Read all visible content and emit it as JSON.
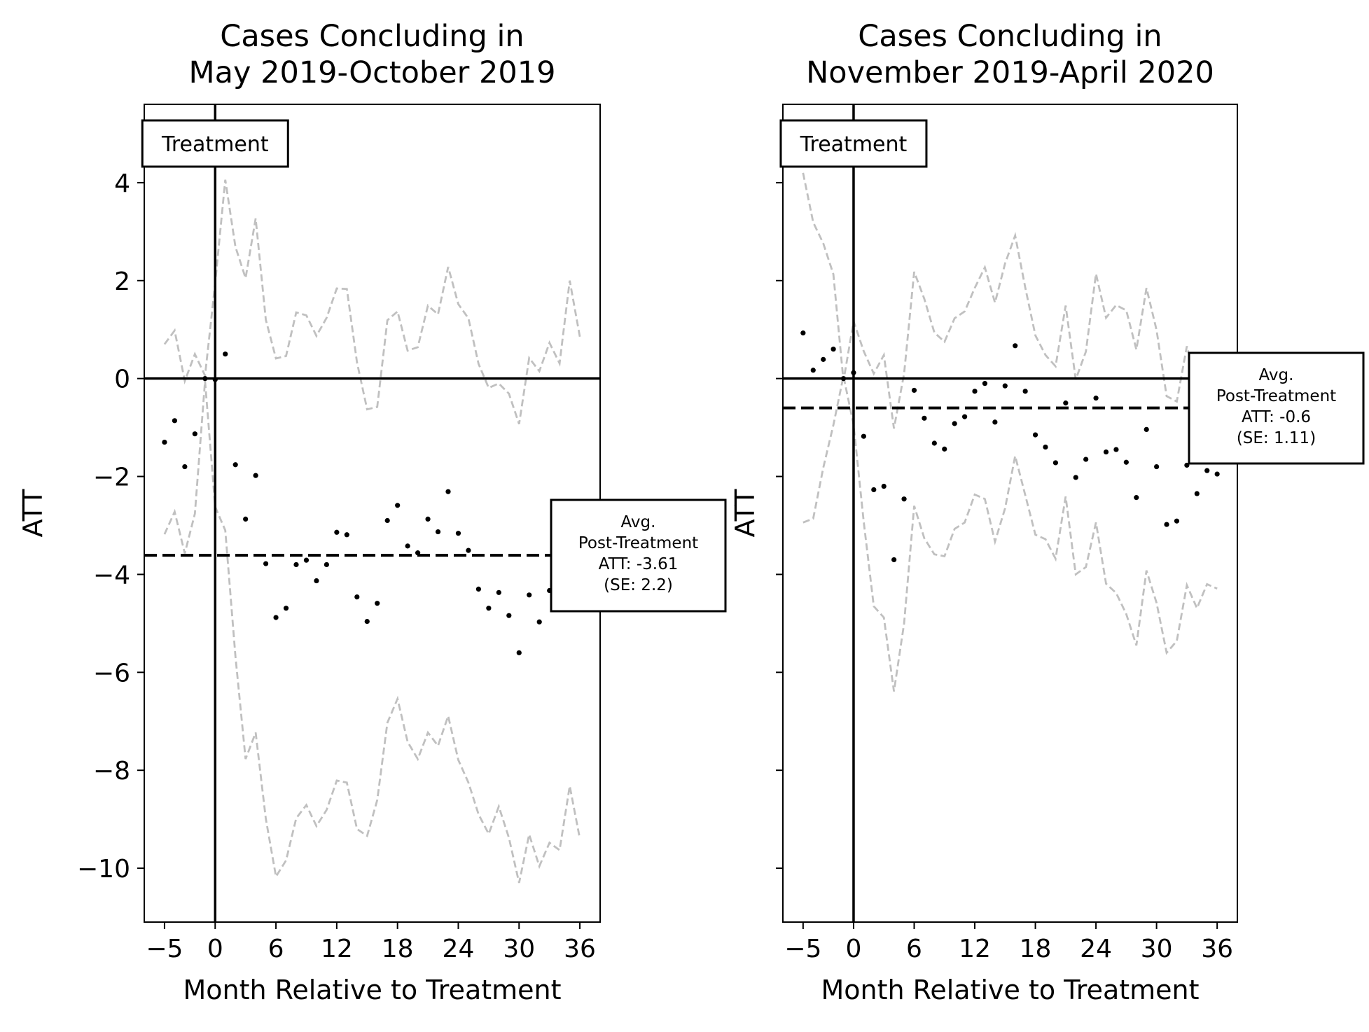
{
  "chart_data": [
    {
      "type": "scatter",
      "title_lines": [
        "Cases Concluding in",
        "May 2019-October 2019"
      ],
      "xlabel": "Month Relative to Treatment",
      "ylabel": "ATT",
      "xlim": [
        -7,
        38
      ],
      "ylim": [
        -11.1,
        5.6
      ],
      "xticks": [
        -5,
        0,
        6,
        12,
        18,
        24,
        30,
        36
      ],
      "xtick_labels": [
        "−5",
        "0",
        "6",
        "12",
        "18",
        "24",
        "30",
        "36"
      ],
      "yticks": [
        4,
        2,
        0,
        -2,
        -4,
        -6,
        -8,
        -10
      ],
      "ytick_labels": [
        "4",
        "2",
        "0",
        "−2",
        "−4",
        "−6",
        "−8",
        "−10"
      ],
      "show_ytick_labels": true,
      "grid": false,
      "treatment_line_x": 0,
      "zero_line_y": 0,
      "treatment_label": "Treatment",
      "avg_att": -3.61,
      "avg_box_lines": [
        "Avg.",
        "Post-Treatment",
        "ATT: -3.61",
        "(SE: 2.2)"
      ],
      "series": [
        {
          "role": "point estimates",
          "marker": "dot",
          "color": "#000000",
          "x": [
            -5,
            -4,
            -3,
            -2,
            -1,
            0,
            1,
            2,
            3,
            4,
            5,
            6,
            7,
            8,
            9,
            10,
            11,
            12,
            13,
            14,
            15,
            16,
            17,
            18,
            19,
            20,
            21,
            22,
            23,
            24,
            25,
            26,
            27,
            28,
            29,
            30,
            31,
            32,
            33,
            34,
            35,
            36
          ],
          "y": [
            -1.3,
            -0.86,
            -1.8,
            -1.13,
            0,
            -0.02,
            0.5,
            -1.76,
            -2.87,
            -1.98,
            -3.78,
            -4.88,
            -4.69,
            -3.8,
            -3.71,
            -4.13,
            -3.8,
            -3.14,
            -3.19,
            -4.46,
            -4.96,
            -4.59,
            -2.9,
            -2.59,
            -3.42,
            -3.56,
            -2.87,
            -3.13,
            -2.31,
            -3.16,
            -3.51,
            -4.3,
            -4.69,
            -4.37,
            -4.84,
            -5.6,
            -4.42,
            -4.97,
            -4.33,
            -4.28,
            -4.27,
            -4.31
          ]
        },
        {
          "role": "upper confidence bound",
          "style": "dashed",
          "color": "#c0c0c0",
          "x": [
            -5,
            -4,
            -3,
            -2,
            -1,
            0,
            1,
            2,
            3,
            4,
            5,
            6,
            7,
            8,
            9,
            10,
            11,
            12,
            13,
            14,
            15,
            16,
            17,
            18,
            19,
            20,
            21,
            22,
            23,
            24,
            25,
            26,
            27,
            28,
            29,
            30,
            31,
            32,
            33,
            34,
            35,
            36
          ],
          "y": [
            0.7,
            0.98,
            -0.05,
            0.5,
            0.06,
            1.95,
            4.06,
            2.69,
            2.05,
            3.27,
            1.2,
            0.41,
            0.46,
            1.35,
            1.29,
            0.87,
            1.24,
            1.84,
            1.83,
            0.33,
            -0.63,
            -0.58,
            1.19,
            1.37,
            0.57,
            0.64,
            1.49,
            1.31,
            2.28,
            1.52,
            1.23,
            0.3,
            -0.19,
            -0.1,
            -0.31,
            -0.93,
            0.42,
            0.15,
            0.73,
            0.31,
            2.0,
            0.85
          ]
        },
        {
          "role": "lower confidence bound",
          "style": "dashed",
          "color": "#c0c0c0",
          "x": [
            -5,
            -4,
            -3,
            -2,
            -1,
            0,
            1,
            2,
            3,
            4,
            5,
            6,
            7,
            8,
            9,
            10,
            11,
            12,
            13,
            14,
            15,
            16,
            17,
            18,
            19,
            20,
            21,
            22,
            23,
            24,
            25,
            26,
            27,
            28,
            29,
            30,
            31,
            32,
            33,
            34,
            35,
            36
          ],
          "y": [
            -3.18,
            -2.72,
            -3.57,
            -2.76,
            -0.05,
            -2.62,
            -3.1,
            -5.67,
            -7.77,
            -7.23,
            -8.99,
            -10.17,
            -9.84,
            -8.98,
            -8.71,
            -9.14,
            -8.81,
            -8.21,
            -8.25,
            -9.2,
            -9.34,
            -8.61,
            -7.03,
            -6.54,
            -7.42,
            -7.77,
            -7.23,
            -7.5,
            -6.89,
            -7.79,
            -8.25,
            -8.9,
            -9.3,
            -8.74,
            -9.38,
            -10.3,
            -9.31,
            -9.96,
            -9.48,
            -9.63,
            -8.32,
            -9.4
          ]
        }
      ]
    },
    {
      "type": "scatter",
      "title_lines": [
        "Cases Concluding in",
        "November 2019-April 2020"
      ],
      "xlabel": "Month Relative to Treatment",
      "ylabel": "ATT",
      "xlim": [
        -7,
        38
      ],
      "ylim": [
        -11.1,
        5.6
      ],
      "xticks": [
        -5,
        0,
        6,
        12,
        18,
        24,
        30,
        36
      ],
      "xtick_labels": [
        "−5",
        "0",
        "6",
        "12",
        "18",
        "24",
        "30",
        "36"
      ],
      "yticks": [
        4,
        2,
        0,
        -2,
        -4,
        -6,
        -8,
        -10
      ],
      "ytick_labels": [],
      "show_ytick_labels": false,
      "grid": false,
      "treatment_line_x": 0,
      "zero_line_y": 0,
      "treatment_label": "Treatment",
      "avg_att": -0.6,
      "avg_box_lines": [
        "Avg.",
        "Post-Treatment",
        "ATT: -0.6",
        "(SE: 1.11)"
      ],
      "series": [
        {
          "role": "point estimates",
          "marker": "dot",
          "color": "#000000",
          "x": [
            -5,
            -4,
            -3,
            -2,
            -1,
            0,
            1,
            2,
            3,
            4,
            5,
            6,
            7,
            8,
            9,
            10,
            11,
            12,
            13,
            14,
            15,
            16,
            17,
            18,
            19,
            20,
            21,
            22,
            23,
            24,
            25,
            26,
            27,
            28,
            29,
            30,
            31,
            32,
            33,
            34,
            35,
            36
          ],
          "y": [
            0.93,
            0.17,
            0.39,
            0.6,
            0,
            0.12,
            -1.18,
            -2.27,
            -2.2,
            -3.7,
            -2.46,
            -0.24,
            -0.81,
            -1.32,
            -1.44,
            -0.92,
            -0.78,
            -0.26,
            -0.1,
            -0.89,
            -0.15,
            0.67,
            -0.26,
            -1.15,
            -1.4,
            -1.72,
            -0.5,
            -2.02,
            -1.65,
            -0.4,
            -1.5,
            -1.45,
            -1.71,
            -2.43,
            -1.04,
            -1.8,
            -2.98,
            -2.91,
            -1.77,
            -2.35,
            -1.88,
            -1.95
          ]
        },
        {
          "role": "upper confidence bound",
          "style": "dashed",
          "color": "#c0c0c0",
          "x": [
            -5,
            -4,
            -3,
            -2,
            -1,
            0,
            1,
            2,
            3,
            4,
            5,
            6,
            7,
            8,
            9,
            10,
            11,
            12,
            13,
            14,
            15,
            16,
            17,
            18,
            19,
            20,
            21,
            22,
            23,
            24,
            25,
            26,
            27,
            28,
            29,
            30,
            31,
            32,
            33,
            34,
            35,
            36
          ],
          "y": [
            4.2,
            3.19,
            2.76,
            2.13,
            -0.05,
            1.17,
            0.56,
            0.1,
            0.48,
            -1.02,
            0.1,
            2.18,
            1.63,
            0.94,
            0.75,
            1.23,
            1.37,
            1.85,
            2.27,
            1.55,
            2.35,
            2.92,
            1.86,
            0.88,
            0.48,
            0.25,
            1.49,
            -0.02,
            0.55,
            2.14,
            1.24,
            1.5,
            1.39,
            0.59,
            1.85,
            0.99,
            -0.36,
            -0.47,
            0.66,
            -0.13,
            -0.03,
            0.1
          ]
        },
        {
          "role": "lower confidence bound",
          "style": "dashed",
          "color": "#c0c0c0",
          "x": [
            -5,
            -4,
            -3,
            -2,
            -1,
            0,
            1,
            2,
            3,
            4,
            5,
            6,
            7,
            8,
            9,
            10,
            11,
            12,
            13,
            14,
            15,
            16,
            17,
            18,
            19,
            20,
            21,
            22,
            23,
            24,
            25,
            26,
            27,
            28,
            29,
            30,
            31,
            32,
            33,
            34,
            35,
            36
          ],
          "y": [
            -2.94,
            -2.86,
            -1.82,
            -0.95,
            0.05,
            -0.95,
            -2.92,
            -4.65,
            -4.88,
            -6.39,
            -5.0,
            -2.6,
            -3.26,
            -3.59,
            -3.63,
            -3.07,
            -2.94,
            -2.37,
            -2.46,
            -3.33,
            -2.65,
            -1.58,
            -2.38,
            -3.19,
            -3.28,
            -3.68,
            -2.41,
            -4.0,
            -3.85,
            -2.94,
            -4.19,
            -4.38,
            -4.81,
            -5.45,
            -3.92,
            -4.58,
            -5.6,
            -5.36,
            -4.22,
            -4.69,
            -4.2,
            -4.29
          ]
        }
      ]
    }
  ]
}
